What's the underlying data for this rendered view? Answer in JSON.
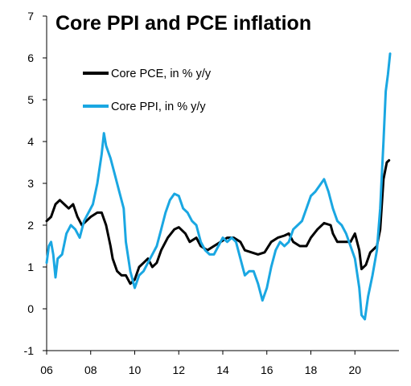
{
  "chart_data": {
    "type": "line",
    "title": "Core PPI and PCE inflation",
    "xlabel": "",
    "ylabel": "",
    "xlim": [
      2006,
      2022
    ],
    "ylim": [
      -1,
      7
    ],
    "x_ticks": [
      2006,
      2008,
      2010,
      2012,
      2014,
      2016,
      2018,
      2020
    ],
    "x_tick_labels": [
      "06",
      "08",
      "10",
      "12",
      "14",
      "16",
      "18",
      "20"
    ],
    "y_ticks": [
      -1,
      0,
      1,
      2,
      3,
      4,
      5,
      6,
      7
    ],
    "y_tick_labels": [
      "-1",
      "0",
      "1",
      "2",
      "3",
      "4",
      "5",
      "6",
      "7"
    ],
    "grid": false,
    "legend_position": "top-left",
    "colors": {
      "pce": "#000000",
      "ppi": "#1aa7e2"
    },
    "series": [
      {
        "name": "Core PCE, in % y/y",
        "key": "pce",
        "points": [
          [
            2006.0,
            2.1
          ],
          [
            2006.2,
            2.2
          ],
          [
            2006.4,
            2.5
          ],
          [
            2006.6,
            2.6
          ],
          [
            2006.8,
            2.5
          ],
          [
            2007.0,
            2.4
          ],
          [
            2007.2,
            2.5
          ],
          [
            2007.4,
            2.2
          ],
          [
            2007.6,
            2.0
          ],
          [
            2007.8,
            2.1
          ],
          [
            2008.0,
            2.2
          ],
          [
            2008.3,
            2.3
          ],
          [
            2008.5,
            2.3
          ],
          [
            2008.7,
            2.0
          ],
          [
            2008.9,
            1.5
          ],
          [
            2009.0,
            1.2
          ],
          [
            2009.2,
            0.9
          ],
          [
            2009.4,
            0.8
          ],
          [
            2009.6,
            0.8
          ],
          [
            2009.8,
            0.6
          ],
          [
            2010.0,
            0.7
          ],
          [
            2010.2,
            1.0
          ],
          [
            2010.4,
            1.1
          ],
          [
            2010.6,
            1.2
          ],
          [
            2010.8,
            1.0
          ],
          [
            2011.0,
            1.1
          ],
          [
            2011.2,
            1.4
          ],
          [
            2011.5,
            1.7
          ],
          [
            2011.8,
            1.9
          ],
          [
            2012.0,
            1.95
          ],
          [
            2012.3,
            1.8
          ],
          [
            2012.5,
            1.6
          ],
          [
            2012.8,
            1.7
          ],
          [
            2013.0,
            1.5
          ],
          [
            2013.3,
            1.4
          ],
          [
            2013.6,
            1.5
          ],
          [
            2013.9,
            1.6
          ],
          [
            2014.2,
            1.7
          ],
          [
            2014.5,
            1.7
          ],
          [
            2014.8,
            1.6
          ],
          [
            2015.0,
            1.4
          ],
          [
            2015.3,
            1.35
          ],
          [
            2015.6,
            1.3
          ],
          [
            2015.9,
            1.35
          ],
          [
            2016.2,
            1.6
          ],
          [
            2016.5,
            1.7
          ],
          [
            2016.8,
            1.75
          ],
          [
            2017.0,
            1.8
          ],
          [
            2017.2,
            1.6
          ],
          [
            2017.5,
            1.5
          ],
          [
            2017.8,
            1.5
          ],
          [
            2018.0,
            1.7
          ],
          [
            2018.3,
            1.9
          ],
          [
            2018.6,
            2.05
          ],
          [
            2018.9,
            2.0
          ],
          [
            2019.0,
            1.8
          ],
          [
            2019.2,
            1.6
          ],
          [
            2019.5,
            1.6
          ],
          [
            2019.8,
            1.6
          ],
          [
            2020.0,
            1.8
          ],
          [
            2020.2,
            1.4
          ],
          [
            2020.3,
            0.95
          ],
          [
            2020.5,
            1.05
          ],
          [
            2020.7,
            1.35
          ],
          [
            2020.9,
            1.45
          ],
          [
            2021.0,
            1.5
          ],
          [
            2021.15,
            1.9
          ],
          [
            2021.3,
            3.1
          ],
          [
            2021.45,
            3.5
          ],
          [
            2021.55,
            3.55
          ]
        ]
      },
      {
        "name": "Core PPI, in % y/y",
        "key": "ppi",
        "points": [
          [
            2006.0,
            1.1
          ],
          [
            2006.1,
            1.5
          ],
          [
            2006.2,
            1.6
          ],
          [
            2006.3,
            1.3
          ],
          [
            2006.4,
            0.75
          ],
          [
            2006.5,
            1.2
          ],
          [
            2006.7,
            1.3
          ],
          [
            2006.9,
            1.8
          ],
          [
            2007.1,
            2.0
          ],
          [
            2007.3,
            1.9
          ],
          [
            2007.5,
            1.7
          ],
          [
            2007.7,
            2.1
          ],
          [
            2007.9,
            2.3
          ],
          [
            2008.1,
            2.5
          ],
          [
            2008.3,
            3.0
          ],
          [
            2008.5,
            3.7
          ],
          [
            2008.6,
            4.2
          ],
          [
            2008.7,
            3.9
          ],
          [
            2008.9,
            3.6
          ],
          [
            2009.1,
            3.2
          ],
          [
            2009.3,
            2.8
          ],
          [
            2009.5,
            2.4
          ],
          [
            2009.6,
            1.6
          ],
          [
            2009.8,
            0.9
          ],
          [
            2010.0,
            0.5
          ],
          [
            2010.2,
            0.8
          ],
          [
            2010.4,
            0.9
          ],
          [
            2010.6,
            1.1
          ],
          [
            2010.8,
            1.3
          ],
          [
            2011.0,
            1.5
          ],
          [
            2011.2,
            1.9
          ],
          [
            2011.4,
            2.3
          ],
          [
            2011.6,
            2.6
          ],
          [
            2011.8,
            2.75
          ],
          [
            2012.0,
            2.7
          ],
          [
            2012.2,
            2.4
          ],
          [
            2012.4,
            2.3
          ],
          [
            2012.6,
            2.1
          ],
          [
            2012.8,
            2.0
          ],
          [
            2013.0,
            1.6
          ],
          [
            2013.2,
            1.4
          ],
          [
            2013.4,
            1.3
          ],
          [
            2013.6,
            1.3
          ],
          [
            2013.8,
            1.5
          ],
          [
            2014.0,
            1.7
          ],
          [
            2014.2,
            1.6
          ],
          [
            2014.4,
            1.7
          ],
          [
            2014.6,
            1.6
          ],
          [
            2014.8,
            1.2
          ],
          [
            2015.0,
            0.8
          ],
          [
            2015.2,
            0.9
          ],
          [
            2015.4,
            0.9
          ],
          [
            2015.6,
            0.6
          ],
          [
            2015.8,
            0.2
          ],
          [
            2016.0,
            0.5
          ],
          [
            2016.2,
            1.0
          ],
          [
            2016.4,
            1.4
          ],
          [
            2016.6,
            1.6
          ],
          [
            2016.8,
            1.5
          ],
          [
            2017.0,
            1.6
          ],
          [
            2017.2,
            1.9
          ],
          [
            2017.4,
            2.0
          ],
          [
            2017.6,
            2.1
          ],
          [
            2017.8,
            2.4
          ],
          [
            2018.0,
            2.7
          ],
          [
            2018.2,
            2.8
          ],
          [
            2018.4,
            2.95
          ],
          [
            2018.6,
            3.1
          ],
          [
            2018.8,
            2.8
          ],
          [
            2019.0,
            2.4
          ],
          [
            2019.2,
            2.1
          ],
          [
            2019.4,
            2.0
          ],
          [
            2019.6,
            1.8
          ],
          [
            2019.8,
            1.5
          ],
          [
            2020.0,
            1.2
          ],
          [
            2020.2,
            0.5
          ],
          [
            2020.3,
            -0.15
          ],
          [
            2020.45,
            -0.25
          ],
          [
            2020.6,
            0.3
          ],
          [
            2020.8,
            0.8
          ],
          [
            2021.0,
            1.4
          ],
          [
            2021.15,
            2.4
          ],
          [
            2021.3,
            4.0
          ],
          [
            2021.4,
            5.2
          ],
          [
            2021.5,
            5.6
          ],
          [
            2021.6,
            6.1
          ]
        ]
      }
    ]
  }
}
